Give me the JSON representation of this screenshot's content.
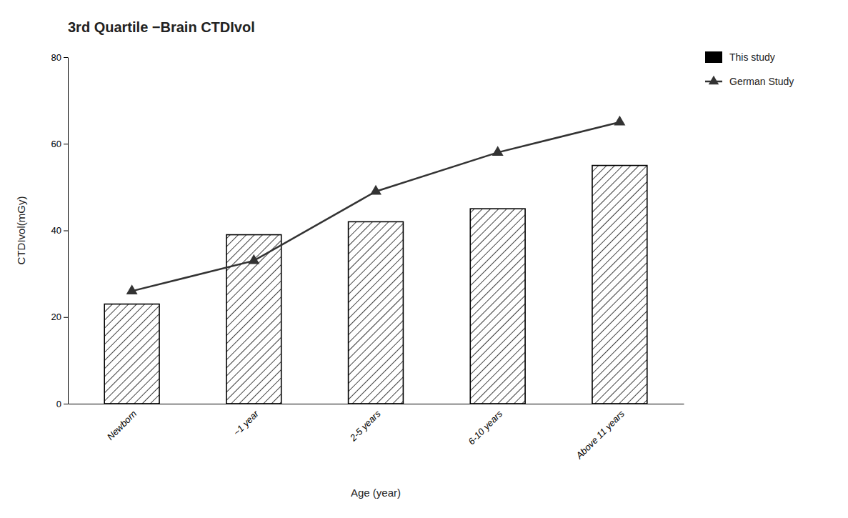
{
  "chart_data": {
    "type": "bar",
    "title": "3rd Quartile −Brain CTDIvol",
    "xlabel": "Age (year)",
    "ylabel": "CTDIvol(mGy)",
    "categories": [
      "Newborn",
      "~1 year",
      "2-5 years",
      "6-10 years",
      "Above 11 years"
    ],
    "series": [
      {
        "name": "This study",
        "type": "bar",
        "color": "#000000",
        "values": [
          23,
          39,
          42,
          45,
          55
        ]
      },
      {
        "name": "German Study",
        "type": "line",
        "color": "#333333",
        "marker": "triangle",
        "values": [
          26,
          33,
          49,
          58,
          65
        ]
      }
    ],
    "ylim": [
      0,
      80
    ],
    "yticks": [
      0,
      20,
      40,
      60,
      80
    ],
    "grid": false,
    "legend": "right"
  }
}
